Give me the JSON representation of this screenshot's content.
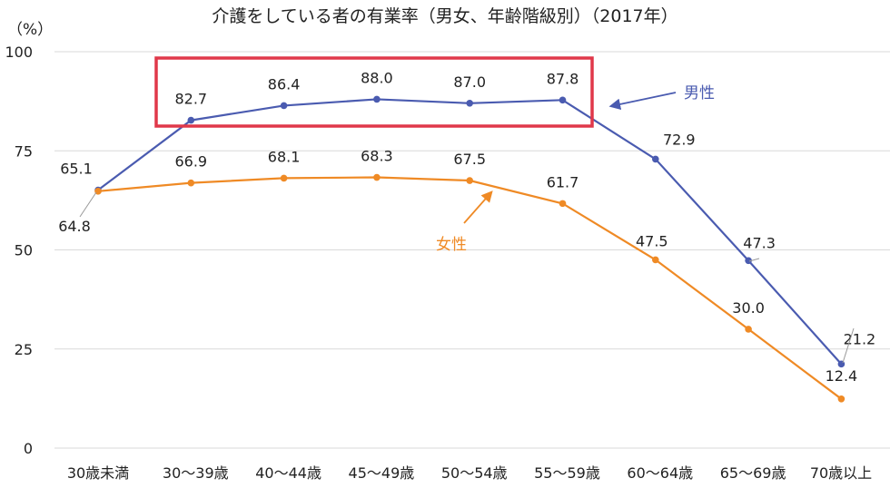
{
  "chart_data": {
    "type": "line",
    "title": "介護をしている者の有業率（男女、年齢階級別）（2017年）",
    "ylabel": "（%）",
    "ylim": [
      0,
      100
    ],
    "yticks": [
      "0",
      "25",
      "50",
      "75",
      "100"
    ],
    "grid": true,
    "categories": [
      "30歳未満",
      "30～39歳",
      "40～44歳",
      "45～49歳",
      "50～54歳",
      "55～59歳",
      "60～64歳",
      "65～69歳",
      "70歳以上"
    ],
    "series": [
      {
        "name": "男性",
        "color": "#4a5bb0",
        "values": [
          65.1,
          82.7,
          86.4,
          88.0,
          87.0,
          87.8,
          72.9,
          47.3,
          21.2
        ],
        "labels": [
          "65.1",
          "82.7",
          "86.4",
          "88.0",
          "87.0",
          "87.8",
          "72.9",
          "47.3",
          "21.2"
        ]
      },
      {
        "name": "女性",
        "color": "#ef8a25",
        "values": [
          64.8,
          66.9,
          68.1,
          68.3,
          67.5,
          61.7,
          47.5,
          30.0,
          12.4
        ],
        "labels": [
          "64.8",
          "66.9",
          "68.1",
          "68.3",
          "67.5",
          "61.7",
          "47.5",
          "30.0",
          "12.4"
        ]
      }
    ],
    "annotations": {
      "highlight_box_color": "#e0384a",
      "highlight_categories": [
        "30～39歳",
        "55～59歳"
      ]
    }
  }
}
